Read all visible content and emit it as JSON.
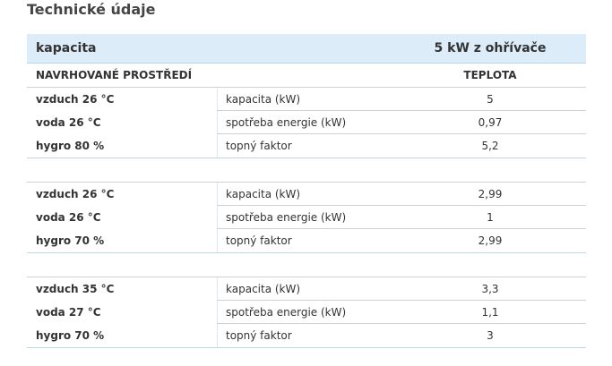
{
  "title": "Technické údaje",
  "table": {
    "header": [
      "kapacita",
      "5 kW z ohřívače"
    ],
    "subheader": [
      "NAVRHOVANÉ PROSTŘEDÍ",
      "TEPLOTA"
    ],
    "groups": [
      {
        "rows": [
          [
            "vzduch 26 °C",
            "kapacita (kW)",
            "5"
          ],
          [
            "voda 26 °C",
            "spotřeba energie (kW)",
            "0,97"
          ],
          [
            "hygro 80 %",
            "topný faktor",
            "5,2"
          ]
        ]
      },
      {
        "rows": [
          [
            "vzduch 26 °C",
            "kapacita (kW)",
            "2,99"
          ],
          [
            "voda 26 °C",
            "spotřeba energie (kW)",
            "1"
          ],
          [
            "hygro 70 %",
            "topný faktor",
            "2,99"
          ]
        ]
      },
      {
        "rows": [
          [
            "vzduch 35 °C",
            "kapacita (kW)",
            "3,3"
          ],
          [
            "voda 27 °C",
            "spotřeba energie (kW)",
            "1,1"
          ],
          [
            "hygro 70 %",
            "topný faktor",
            "3"
          ]
        ]
      }
    ]
  }
}
